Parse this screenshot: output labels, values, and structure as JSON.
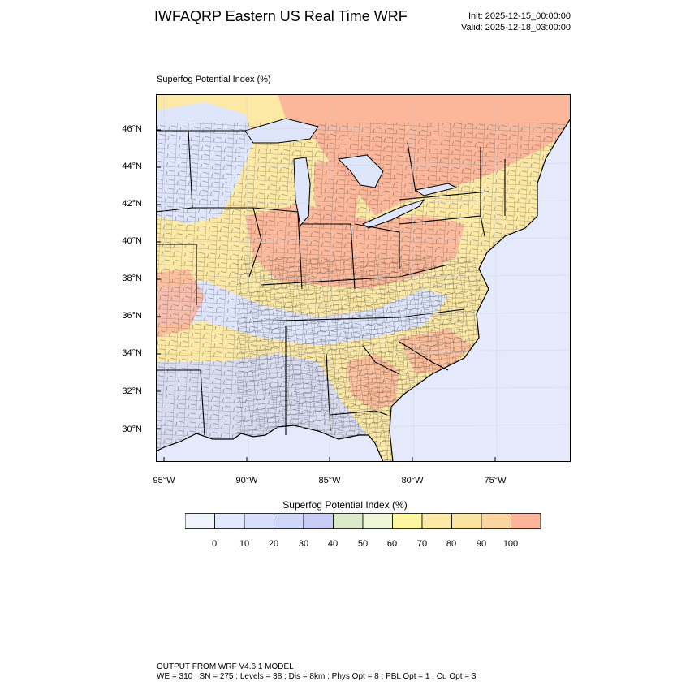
{
  "header": {
    "title": "IWFAQRP Eastern US Real Time WRF",
    "init": "Init: 2025-12-15_00:00:00",
    "valid": "Valid: 2025-12-18_03:00:00"
  },
  "map": {
    "field_label": "Superfog Potential Index   (%)",
    "lat_labels": [
      "46°N",
      "44°N",
      "42°N",
      "40°N",
      "38°N",
      "36°N",
      "34°N",
      "32°N",
      "30°N"
    ],
    "lon_labels": [
      "95°W",
      "90°W",
      "85°W",
      "80°W",
      "75°W"
    ],
    "colors": {
      "land_base": "#fde9a6",
      "high": "#fcb49a",
      "low": "#dfe6fb",
      "ocean": "#e4eafc",
      "mid": "#d6dcfa"
    }
  },
  "colorbar": {
    "title": "Superfog Potential Index  (%)",
    "tick_labels": [
      "0",
      "10",
      "20",
      "30",
      "40",
      "50",
      "60",
      "70",
      "80",
      "90",
      "100"
    ],
    "bins": [
      {
        "color": "#f1f3fb"
      },
      {
        "color": "#e3e9fc"
      },
      {
        "color": "#d7dffb"
      },
      {
        "color": "#d0d8fa"
      },
      {
        "color": "#c9cdf5"
      },
      {
        "color": "#dbe9c8"
      },
      {
        "color": "#eef8d9"
      },
      {
        "color": "#fdf7a1"
      },
      {
        "color": "#fde9a6"
      },
      {
        "color": "#fde3a0"
      },
      {
        "color": "#fcd49f"
      },
      {
        "color": "#fcb49a"
      }
    ]
  },
  "footer": {
    "line1": "OUTPUT FROM WRF V4.6.1 MODEL",
    "line2": "WE = 310 ; SN = 275 ; Levels = 38 ; Dis = 8km ; Phys Opt = 8 ; PBL Opt = 1 ; Cu Opt = 3"
  }
}
